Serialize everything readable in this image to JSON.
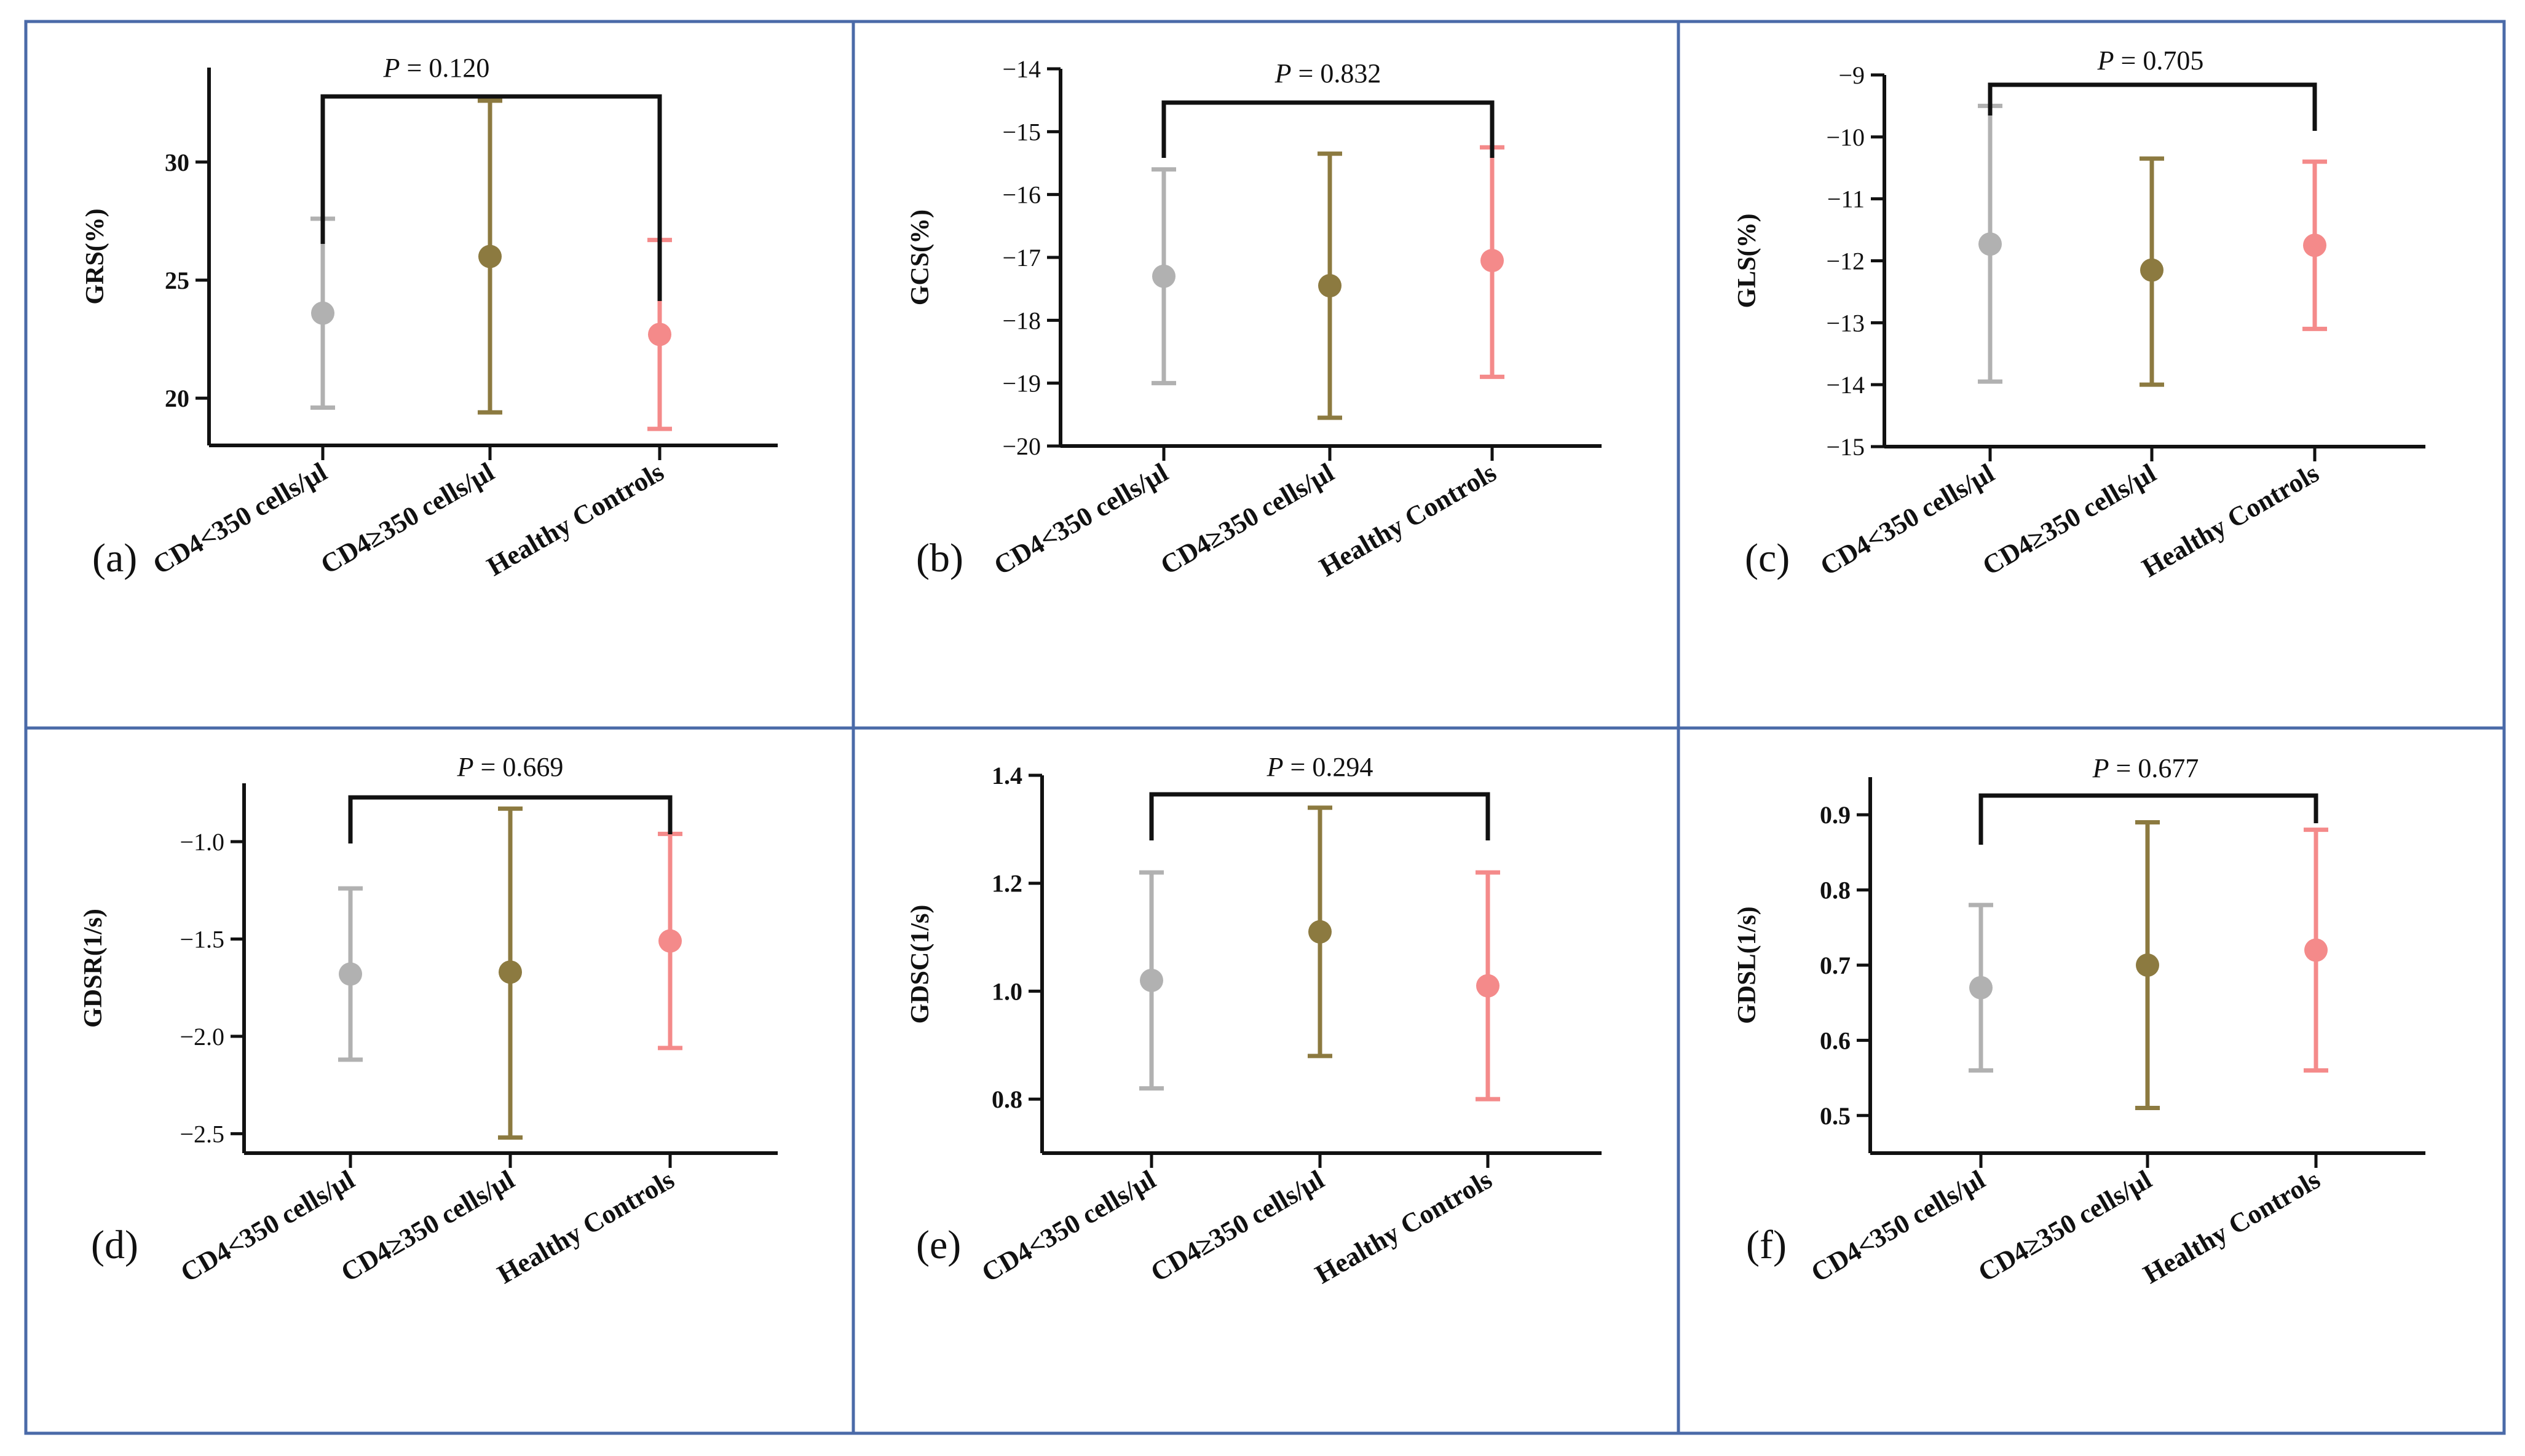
{
  "colors": {
    "CD4<350 cells/μl": "#b1b1b1",
    "CD4≥350 cells/μl": "#8c7a40",
    "Healthy Controls": "#f48a8a"
  },
  "chart_data": [
    {
      "type": "scatter",
      "panel": "(a)",
      "ylabel": "GRS(%)",
      "categories": [
        "CD4<350 cells/μl",
        "CD4≥350 cells/μl",
        "Healthy Controls"
      ],
      "means": [
        23.6,
        26.0,
        22.7
      ],
      "lower": [
        19.6,
        19.4,
        18.7
      ],
      "upper": [
        27.6,
        32.6,
        26.7
      ],
      "ylim": [
        18,
        34
      ],
      "yticks": [
        20,
        25,
        30
      ],
      "ytick_labels": [
        "20",
        "25",
        "30"
      ],
      "bold_ticks": true,
      "p_value": "P = 0.120"
    },
    {
      "type": "scatter",
      "panel": "(b)",
      "ylabel": "GCS(%)",
      "categories": [
        "CD4<350 cells/μl",
        "CD4≥350 cells/μl",
        "Healthy Controls"
      ],
      "means": [
        -17.3,
        -17.45,
        -17.05
      ],
      "lower": [
        -19.0,
        -19.55,
        -18.9
      ],
      "upper": [
        -15.6,
        -15.35,
        -15.25
      ],
      "ylim": [
        -20,
        -14
      ],
      "yticks": [
        -20,
        -19,
        -18,
        -17,
        -16,
        -15,
        -14
      ],
      "ytick_labels": [
        "−20",
        "−19",
        "−18",
        "−17",
        "−16",
        "−15",
        "−14"
      ],
      "bold_ticks": false,
      "p_value": "P = 0.832"
    },
    {
      "type": "scatter",
      "panel": "(c)",
      "ylabel": "GLS(%)",
      "categories": [
        "CD4<350 cells/μl",
        "CD4≥350 cells/μl",
        "Healthy Controls"
      ],
      "means": [
        -11.73,
        -12.15,
        -11.75
      ],
      "lower": [
        -13.95,
        -14.0,
        -13.1
      ],
      "upper": [
        -9.5,
        -10.35,
        -10.4
      ],
      "ylim": [
        -15,
        -9
      ],
      "yticks": [
        -15,
        -14,
        -13,
        -12,
        -11,
        -10,
        -9
      ],
      "ytick_labels": [
        "−15",
        "−14",
        "−13",
        "−12",
        "−11",
        "−10",
        "−9"
      ],
      "bold_ticks": false,
      "p_value": "P = 0.705"
    },
    {
      "type": "scatter",
      "panel": "(d)",
      "ylabel": "GDSR(1/s)",
      "categories": [
        "CD4<350 cells/μl",
        "CD4≥350 cells/μl",
        "Healthy Controls"
      ],
      "means": [
        -1.68,
        -1.67,
        -1.51
      ],
      "lower": [
        -2.12,
        -2.52,
        -2.06
      ],
      "upper": [
        -1.24,
        -0.83,
        -0.96
      ],
      "ylim": [
        -2.6,
        -0.7
      ],
      "yticks": [
        -2.5,
        -2.0,
        -1.5,
        -1.0
      ],
      "ytick_labels": [
        "−2.5",
        "−2.0",
        "−1.5",
        "−1.0"
      ],
      "bold_ticks": false,
      "p_value": "P = 0.669"
    },
    {
      "type": "scatter",
      "panel": "(e)",
      "ylabel": "GDSC(1/s)",
      "categories": [
        "CD4<350 cells/μl",
        "CD4≥350 cells/μl",
        "Healthy Controls"
      ],
      "means": [
        1.02,
        1.11,
        1.01
      ],
      "lower": [
        0.82,
        0.88,
        0.8
      ],
      "upper": [
        1.22,
        1.34,
        1.22
      ],
      "ylim": [
        0.7,
        1.4
      ],
      "yticks": [
        0.8,
        1.0,
        1.2,
        1.4
      ],
      "ytick_labels": [
        "0.8",
        "1.0",
        "1.2",
        "1.4"
      ],
      "bold_ticks": true,
      "p_value": "P = 0.294"
    },
    {
      "type": "scatter",
      "panel": "(f)",
      "ylabel": "GDSL(1/s)",
      "categories": [
        "CD4<350 cells/μl",
        "CD4≥350 cells/μl",
        "Healthy Controls"
      ],
      "means": [
        0.67,
        0.7,
        0.72
      ],
      "lower": [
        0.56,
        0.51,
        0.56
      ],
      "upper": [
        0.78,
        0.89,
        0.88
      ],
      "ylim": [
        0.45,
        0.95
      ],
      "yticks": [
        0.5,
        0.6,
        0.7,
        0.8,
        0.9
      ],
      "ytick_labels": [
        "0.5",
        "0.6",
        "0.7",
        "0.8",
        "0.9"
      ],
      "bold_ticks": true,
      "p_value": "P = 0.677"
    }
  ]
}
